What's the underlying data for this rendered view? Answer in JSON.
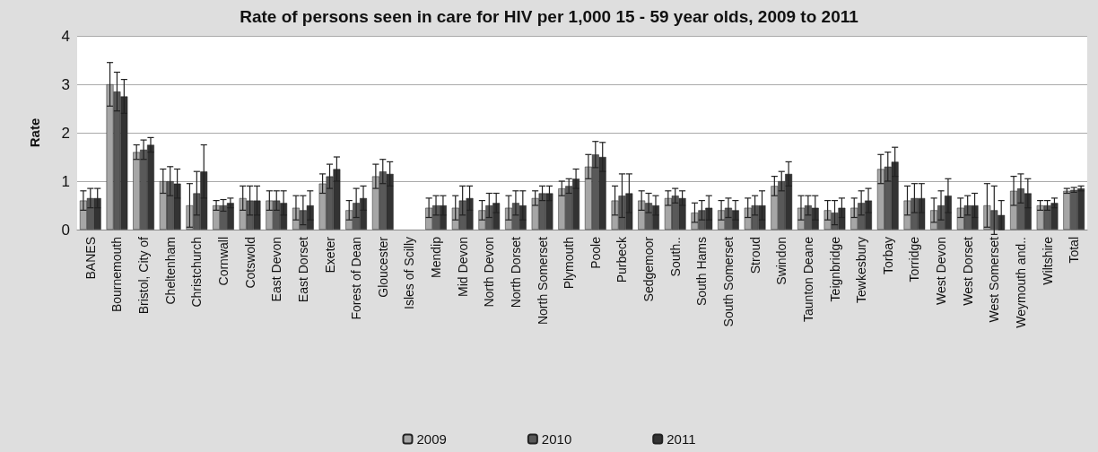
{
  "chart_data": {
    "type": "bar",
    "title": "Rate of persons seen in care for HIV per 1,000 15 - 59 year olds, 2009 to 2011",
    "ylabel": "Rate",
    "categories": [
      "BANES",
      "Bournemouth",
      "Bristol, City of",
      "Cheltenham",
      "Christchurch",
      "Cornwall",
      "Cotswold",
      "East Devon",
      "East Dorset",
      "Exeter",
      "Forest of Dean",
      "Gloucester",
      "Isles of Scilly",
      "Mendip",
      "Mid Devon",
      "North Devon",
      "North Dorset",
      "North Somerset",
      "Plymouth",
      "Poole",
      "Purbeck",
      "Sedgemoor",
      "South..",
      "South Hams",
      "South Somerset",
      "Stroud",
      "Swindon",
      "Taunton Deane",
      "Teignbridge",
      "Tewkesbury",
      "Torbay",
      "Torridge",
      "West Devon",
      "West Dorset",
      "West Somerset",
      "Weymouth and..",
      "Wiltshire",
      "Total"
    ],
    "series": [
      {
        "name": "2009",
        "color": "#a6a6a6",
        "values": [
          0.6,
          3.0,
          1.6,
          1.0,
          0.5,
          0.5,
          0.65,
          0.6,
          0.45,
          0.95,
          0.4,
          1.1,
          null,
          0.45,
          0.45,
          0.4,
          0.45,
          0.65,
          0.85,
          1.3,
          0.6,
          0.6,
          0.65,
          0.35,
          0.4,
          0.45,
          0.9,
          0.45,
          0.4,
          0.45,
          1.25,
          0.6,
          0.4,
          0.45,
          0.5,
          0.8,
          0.5,
          0.8
        ],
        "errors": [
          0.2,
          0.45,
          0.15,
          0.25,
          0.45,
          0.1,
          0.25,
          0.2,
          0.25,
          0.2,
          0.2,
          0.25,
          null,
          0.2,
          0.25,
          0.2,
          0.25,
          0.15,
          0.15,
          0.25,
          0.3,
          0.2,
          0.15,
          0.2,
          0.2,
          0.2,
          0.2,
          0.25,
          0.2,
          0.2,
          0.3,
          0.3,
          0.25,
          0.2,
          0.45,
          0.3,
          0.1,
          0.05
        ]
      },
      {
        "name": "2010",
        "color": "#595959",
        "values": [
          0.65,
          2.85,
          1.65,
          1.0,
          0.75,
          0.5,
          0.6,
          0.6,
          0.4,
          1.1,
          0.55,
          1.2,
          null,
          0.5,
          0.6,
          0.5,
          0.55,
          0.75,
          0.9,
          1.55,
          0.7,
          0.55,
          0.7,
          0.4,
          0.45,
          0.5,
          1.0,
          0.5,
          0.35,
          0.55,
          1.3,
          0.65,
          0.5,
          0.5,
          0.4,
          0.85,
          0.5,
          0.82
        ],
        "errors": [
          0.2,
          0.4,
          0.2,
          0.3,
          0.45,
          0.12,
          0.3,
          0.2,
          0.3,
          0.25,
          0.3,
          0.25,
          null,
          0.2,
          0.3,
          0.25,
          0.25,
          0.15,
          0.15,
          0.27,
          0.45,
          0.2,
          0.15,
          0.2,
          0.2,
          0.2,
          0.2,
          0.2,
          0.25,
          0.25,
          0.3,
          0.3,
          0.3,
          0.2,
          0.5,
          0.3,
          0.1,
          0.05
        ]
      },
      {
        "name": "2011",
        "color": "#333333",
        "values": [
          0.65,
          2.75,
          1.75,
          0.95,
          1.2,
          0.55,
          0.6,
          0.55,
          0.5,
          1.25,
          0.65,
          1.15,
          null,
          0.5,
          0.65,
          0.55,
          0.5,
          0.75,
          1.05,
          1.5,
          0.75,
          0.5,
          0.65,
          0.45,
          0.4,
          0.5,
          1.15,
          0.45,
          0.45,
          0.6,
          1.4,
          0.65,
          0.7,
          0.5,
          0.3,
          0.75,
          0.55,
          0.85
        ],
        "errors": [
          0.2,
          0.35,
          0.15,
          0.3,
          0.55,
          0.1,
          0.3,
          0.25,
          0.3,
          0.25,
          0.25,
          0.25,
          null,
          0.2,
          0.25,
          0.2,
          0.3,
          0.15,
          0.2,
          0.3,
          0.4,
          0.2,
          0.15,
          0.25,
          0.2,
          0.3,
          0.25,
          0.25,
          0.2,
          0.25,
          0.3,
          0.3,
          0.35,
          0.25,
          0.3,
          0.3,
          0.1,
          0.05
        ]
      }
    ],
    "ylim": [
      0,
      4
    ],
    "yticks": [
      0,
      1,
      2,
      3,
      4
    ],
    "grid": "y",
    "legend": "bottom"
  }
}
